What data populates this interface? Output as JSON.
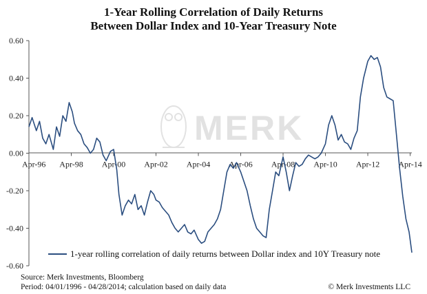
{
  "title_line1": "1-Year Rolling Correlation of Daily Returns",
  "title_line2": "Between Dollar Index and 10-Year Treasury Note",
  "watermark_text": "MERK",
  "footer": {
    "source": "Source: Merk Investments, Bloomberg",
    "period": "Period: 04/01/1996 - 04/28/2014; calculation based on daily data",
    "copyright": "© Merk Investments LLC"
  },
  "colors": {
    "series": "#2a4d7f",
    "axis": "#555555",
    "watermark": "#e2e2e2"
  },
  "chart_data": {
    "type": "line",
    "title": "1-Year Rolling Correlation of Daily Returns Between Dollar Index and 10-Year Treasury Note",
    "xlabel": "",
    "ylabel": "",
    "xlim": [
      1996.25,
      2014.33
    ],
    "ylim": [
      -0.6,
      0.6
    ],
    "grid": false,
    "legend_position": "bottom",
    "y_ticks": [
      "0.60",
      "0.40",
      "0.20",
      "0.00",
      "-0.20",
      "-0.40",
      "-0.60"
    ],
    "x_ticks": [
      {
        "label": "Apr-96",
        "x": 1996.25
      },
      {
        "label": "Apr-98",
        "x": 1998.25
      },
      {
        "label": "Apr-00",
        "x": 2000.25
      },
      {
        "label": "Apr-02",
        "x": 2002.25
      },
      {
        "label": "Apr-04",
        "x": 2004.25
      },
      {
        "label": "Apr-06",
        "x": 2006.25
      },
      {
        "label": "Apr-08",
        "x": 2008.25
      },
      {
        "label": "Apr-10",
        "x": 2010.25
      },
      {
        "label": "Apr-12",
        "x": 2012.25
      },
      {
        "label": "Apr-14",
        "x": 2014.25
      }
    ],
    "series": [
      {
        "name": "1-year rolling correlation of daily returns between Dollar index and 10Y Treasury note",
        "x": [
          1996.25,
          1996.4,
          1996.6,
          1996.75,
          1996.9,
          1997.05,
          1997.2,
          1997.4,
          1997.55,
          1997.7,
          1997.85,
          1998.0,
          1998.15,
          1998.3,
          1998.4,
          1998.55,
          1998.7,
          1998.85,
          1999.0,
          1999.15,
          1999.3,
          1999.45,
          1999.6,
          1999.75,
          1999.9,
          2000.1,
          2000.25,
          2000.4,
          2000.5,
          2000.65,
          2000.8,
          2000.95,
          2001.1,
          2001.25,
          2001.4,
          2001.55,
          2001.7,
          2001.85,
          2002.0,
          2002.15,
          2002.25,
          2002.4,
          2002.55,
          2002.7,
          2002.85,
          2003.0,
          2003.15,
          2003.3,
          2003.45,
          2003.6,
          2003.75,
          2003.9,
          2004.05,
          2004.25,
          2004.4,
          2004.55,
          2004.7,
          2004.85,
          2005.0,
          2005.15,
          2005.3,
          2005.45,
          2005.6,
          2005.75,
          2005.9,
          2006.05,
          2006.25,
          2006.4,
          2006.55,
          2006.7,
          2006.85,
          2007.0,
          2007.15,
          2007.3,
          2007.45,
          2007.6,
          2007.75,
          2007.9,
          2008.05,
          2008.25,
          2008.4,
          2008.55,
          2008.7,
          2008.85,
          2009.0,
          2009.15,
          2009.3,
          2009.45,
          2009.6,
          2009.75,
          2009.9,
          2010.05,
          2010.25,
          2010.4,
          2010.55,
          2010.7,
          2010.85,
          2011.0,
          2011.15,
          2011.3,
          2011.45,
          2011.6,
          2011.75,
          2011.9,
          2012.05,
          2012.25,
          2012.4,
          2012.55,
          2012.7,
          2012.85,
          2013.0,
          2013.15,
          2013.3,
          2013.45,
          2013.6,
          2013.75,
          2013.9,
          2014.05,
          2014.2,
          2014.33
        ],
        "y": [
          0.14,
          0.19,
          0.12,
          0.17,
          0.08,
          0.05,
          0.1,
          0.02,
          0.14,
          0.09,
          0.2,
          0.17,
          0.27,
          0.22,
          0.16,
          0.12,
          0.1,
          0.05,
          0.03,
          0.0,
          0.02,
          0.08,
          0.06,
          -0.01,
          -0.04,
          0.01,
          0.02,
          -0.09,
          -0.22,
          -0.33,
          -0.28,
          -0.25,
          -0.27,
          -0.22,
          -0.3,
          -0.28,
          -0.33,
          -0.26,
          -0.2,
          -0.22,
          -0.25,
          -0.26,
          -0.29,
          -0.31,
          -0.33,
          -0.37,
          -0.4,
          -0.42,
          -0.4,
          -0.38,
          -0.42,
          -0.43,
          -0.41,
          -0.46,
          -0.48,
          -0.47,
          -0.42,
          -0.4,
          -0.38,
          -0.35,
          -0.3,
          -0.2,
          -0.1,
          -0.06,
          -0.08,
          -0.05,
          -0.1,
          -0.15,
          -0.2,
          -0.28,
          -0.35,
          -0.4,
          -0.42,
          -0.44,
          -0.45,
          -0.3,
          -0.2,
          -0.1,
          -0.12,
          -0.02,
          -0.1,
          -0.2,
          -0.12,
          -0.05,
          -0.07,
          -0.06,
          -0.03,
          -0.01,
          -0.02,
          -0.03,
          -0.02,
          0.0,
          0.05,
          0.15,
          0.2,
          0.15,
          0.07,
          0.1,
          0.06,
          0.05,
          0.02,
          0.08,
          0.12,
          0.3,
          0.4,
          0.49,
          0.52,
          0.5,
          0.51,
          0.46,
          0.35,
          0.3,
          0.29,
          0.28,
          0.1,
          -0.08,
          -0.23,
          -0.35,
          -0.42,
          -0.53
        ]
      }
    ]
  }
}
